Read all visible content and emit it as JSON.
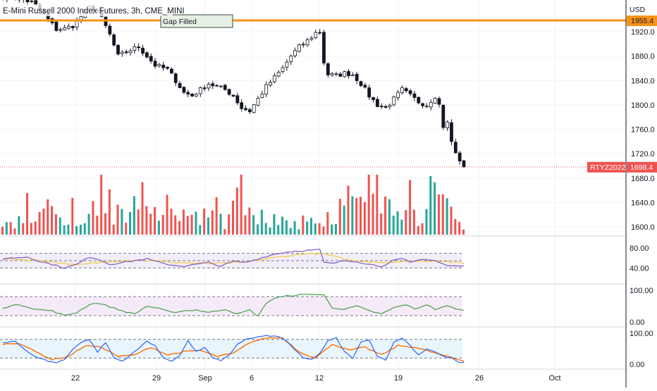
{
  "header": {
    "title": "E-Mini Russell 2000 Index Futures, 3h, CME_MINI"
  },
  "price_axis": {
    "currency": "USD",
    "ticks": [
      1920,
      1880,
      1840,
      1800,
      1760,
      1720,
      1680,
      1640,
      1600
    ],
    "tick_labels": [
      "1920.0",
      "1880.0",
      "1840.0",
      "1800.0",
      "1760.0",
      "1720.0",
      "1680.0",
      "1640.0",
      "1600.0"
    ],
    "hline_label": "1955.4"
  },
  "annotations": {
    "gap_label": "Gap Filled",
    "symbol_tag": "RTYZ2022",
    "last_price": "1698.4"
  },
  "rsi_panel": {
    "ticks": [
      "80.00",
      "40.00"
    ]
  },
  "osc_panel": {
    "ticks": [
      "100.00",
      "0.00"
    ]
  },
  "stoch_panel": {
    "ticks": [
      "100.00",
      "0.00"
    ]
  },
  "time_axis": {
    "labels": [
      "22",
      "29",
      "Sep",
      "6",
      "12",
      "19",
      "26",
      "Oct"
    ]
  },
  "colors": {
    "up": "#26a69a",
    "down": "#ef5350",
    "candle": "#131722",
    "hline": "#f7931a",
    "rsi": "#7e57c2",
    "rsi_ma": "#f3ca45",
    "osc": "#43a047",
    "stoch_k": "#2962ff",
    "stoch_d": "#ff6d00"
  },
  "chart_data": {
    "type": "candlestick",
    "interval": "3h",
    "x_labels": [
      "22",
      "29",
      "Sep",
      "6",
      "12",
      "19",
      "26",
      "Oct"
    ],
    "ylim": [
      1585,
      1972
    ],
    "horizontal_line": 1955.4,
    "last_price": 1698.4,
    "price_path": [
      [
        0,
        1978
      ],
      [
        4,
        1975
      ],
      [
        7,
        1968
      ],
      [
        9,
        1955
      ],
      [
        11,
        1940
      ],
      [
        13,
        1924
      ],
      [
        15,
        1925
      ],
      [
        17,
        1930
      ],
      [
        19,
        1945
      ],
      [
        21,
        1960
      ],
      [
        23,
        1955
      ],
      [
        26,
        1915
      ],
      [
        28,
        1880
      ],
      [
        31,
        1890
      ],
      [
        33,
        1895
      ],
      [
        35,
        1880
      ],
      [
        37,
        1865
      ],
      [
        40,
        1858
      ],
      [
        42,
        1840
      ],
      [
        44,
        1820
      ],
      [
        46,
        1815
      ],
      [
        48,
        1825
      ],
      [
        50,
        1835
      ],
      [
        52,
        1830
      ],
      [
        54,
        1825
      ],
      [
        56,
        1815
      ],
      [
        58,
        1795
      ],
      [
        60,
        1790
      ],
      [
        62,
        1810
      ],
      [
        64,
        1830
      ],
      [
        66,
        1845
      ],
      [
        68,
        1860
      ],
      [
        70,
        1880
      ],
      [
        72,
        1895
      ],
      [
        74,
        1905
      ],
      [
        76,
        1918
      ],
      [
        77,
        1920
      ],
      [
        78,
        1870
      ],
      [
        79,
        1850
      ],
      [
        81,
        1848
      ],
      [
        83,
        1852
      ],
      [
        85,
        1850
      ],
      [
        87,
        1835
      ],
      [
        89,
        1815
      ],
      [
        91,
        1800
      ],
      [
        93,
        1795
      ],
      [
        95,
        1810
      ],
      [
        97,
        1825
      ],
      [
        99,
        1815
      ],
      [
        101,
        1805
      ],
      [
        103,
        1800
      ],
      [
        105,
        1815
      ],
      [
        106,
        1800
      ],
      [
        107,
        1765
      ],
      [
        108,
        1770
      ],
      [
        109,
        1740
      ],
      [
        110,
        1720
      ],
      [
        111,
        1710
      ],
      [
        112,
        1698
      ]
    ],
    "volume_path": [
      [
        0,
        8
      ],
      [
        3,
        14
      ],
      [
        5,
        30
      ],
      [
        8,
        22
      ],
      [
        12,
        40
      ],
      [
        15,
        18
      ],
      [
        19,
        32
      ],
      [
        22,
        55
      ],
      [
        24,
        60
      ],
      [
        27,
        35
      ],
      [
        30,
        20
      ],
      [
        33,
        45
      ],
      [
        36,
        25
      ],
      [
        40,
        40
      ],
      [
        43,
        15
      ],
      [
        47,
        30
      ],
      [
        50,
        28
      ],
      [
        54,
        18
      ],
      [
        58,
        70
      ],
      [
        61,
        35
      ],
      [
        64,
        25
      ],
      [
        67,
        20
      ],
      [
        71,
        15
      ],
      [
        75,
        25
      ],
      [
        78,
        20
      ],
      [
        81,
        30
      ],
      [
        84,
        55
      ],
      [
        87,
        40
      ],
      [
        90,
        60
      ],
      [
        93,
        40
      ],
      [
        96,
        25
      ],
      [
        99,
        35
      ],
      [
        102,
        25
      ],
      [
        105,
        50
      ],
      [
        108,
        45
      ],
      [
        112,
        12
      ]
    ],
    "rsi_path": [
      [
        0,
        55
      ],
      [
        3,
        58
      ],
      [
        6,
        60
      ],
      [
        9,
        48
      ],
      [
        12,
        40
      ],
      [
        15,
        30
      ],
      [
        18,
        40
      ],
      [
        21,
        60
      ],
      [
        23,
        55
      ],
      [
        26,
        40
      ],
      [
        29,
        45
      ],
      [
        32,
        50
      ],
      [
        35,
        55
      ],
      [
        38,
        45
      ],
      [
        41,
        38
      ],
      [
        44,
        35
      ],
      [
        47,
        40
      ],
      [
        50,
        45
      ],
      [
        53,
        35
      ],
      [
        56,
        48
      ],
      [
        59,
        45
      ],
      [
        62,
        55
      ],
      [
        65,
        65
      ],
      [
        68,
        72
      ],
      [
        71,
        76
      ],
      [
        74,
        78
      ],
      [
        77,
        80
      ],
      [
        78,
        45
      ],
      [
        80,
        42
      ],
      [
        83,
        50
      ],
      [
        86,
        48
      ],
      [
        89,
        40
      ],
      [
        92,
        35
      ],
      [
        95,
        50
      ],
      [
        97,
        55
      ],
      [
        99,
        45
      ],
      [
        102,
        55
      ],
      [
        105,
        50
      ],
      [
        108,
        36
      ],
      [
        112,
        35
      ]
    ],
    "rsi_ma_path": [
      [
        0,
        56
      ],
      [
        10,
        50
      ],
      [
        18,
        38
      ],
      [
        26,
        48
      ],
      [
        34,
        52
      ],
      [
        42,
        45
      ],
      [
        50,
        42
      ],
      [
        58,
        45
      ],
      [
        66,
        58
      ],
      [
        74,
        70
      ],
      [
        78,
        68
      ],
      [
        84,
        52
      ],
      [
        92,
        45
      ],
      [
        100,
        48
      ],
      [
        106,
        50
      ],
      [
        112,
        42
      ]
    ],
    "osc_path": [
      [
        0,
        45
      ],
      [
        4,
        55
      ],
      [
        8,
        40
      ],
      [
        12,
        35
      ],
      [
        15,
        20
      ],
      [
        18,
        30
      ],
      [
        21,
        55
      ],
      [
        23,
        60
      ],
      [
        26,
        48
      ],
      [
        29,
        35
      ],
      [
        32,
        25
      ],
      [
        35,
        50
      ],
      [
        38,
        42
      ],
      [
        41,
        30
      ],
      [
        44,
        35
      ],
      [
        47,
        38
      ],
      [
        50,
        30
      ],
      [
        54,
        40
      ],
      [
        57,
        25
      ],
      [
        60,
        38
      ],
      [
        62,
        18
      ],
      [
        64,
        60
      ],
      [
        66,
        75
      ],
      [
        69,
        82
      ],
      [
        72,
        85
      ],
      [
        75,
        88
      ],
      [
        78,
        85
      ],
      [
        80,
        45
      ],
      [
        83,
        40
      ],
      [
        86,
        50
      ],
      [
        89,
        35
      ],
      [
        92,
        25
      ],
      [
        95,
        45
      ],
      [
        98,
        55
      ],
      [
        100,
        40
      ],
      [
        103,
        55
      ],
      [
        105,
        40
      ],
      [
        108,
        50
      ],
      [
        112,
        35
      ]
    ],
    "stoch_k_path": [
      [
        0,
        70
      ],
      [
        3,
        75
      ],
      [
        5,
        50
      ],
      [
        7,
        30
      ],
      [
        9,
        20
      ],
      [
        11,
        10
      ],
      [
        13,
        5
      ],
      [
        15,
        15
      ],
      [
        17,
        50
      ],
      [
        19,
        70
      ],
      [
        21,
        80
      ],
      [
        23,
        40
      ],
      [
        25,
        70
      ],
      [
        27,
        20
      ],
      [
        29,
        10
      ],
      [
        31,
        30
      ],
      [
        33,
        50
      ],
      [
        35,
        75
      ],
      [
        37,
        60
      ],
      [
        39,
        20
      ],
      [
        41,
        10
      ],
      [
        43,
        30
      ],
      [
        45,
        75
      ],
      [
        47,
        40
      ],
      [
        49,
        55
      ],
      [
        51,
        20
      ],
      [
        53,
        10
      ],
      [
        55,
        30
      ],
      [
        57,
        65
      ],
      [
        59,
        80
      ],
      [
        61,
        85
      ],
      [
        63,
        90
      ],
      [
        65,
        92
      ],
      [
        67,
        88
      ],
      [
        69,
        75
      ],
      [
        71,
        45
      ],
      [
        73,
        20
      ],
      [
        75,
        15
      ],
      [
        77,
        35
      ],
      [
        79,
        75
      ],
      [
        81,
        85
      ],
      [
        83,
        40
      ],
      [
        85,
        20
      ],
      [
        87,
        70
      ],
      [
        89,
        80
      ],
      [
        91,
        25
      ],
      [
        93,
        15
      ],
      [
        95,
        70
      ],
      [
        97,
        85
      ],
      [
        99,
        60
      ],
      [
        101,
        30
      ],
      [
        103,
        50
      ],
      [
        105,
        40
      ],
      [
        107,
        25
      ],
      [
        109,
        20
      ],
      [
        111,
        5
      ],
      [
        112,
        5
      ]
    ],
    "stoch_d_path": [
      [
        0,
        65
      ],
      [
        4,
        68
      ],
      [
        8,
        40
      ],
      [
        12,
        15
      ],
      [
        16,
        25
      ],
      [
        20,
        60
      ],
      [
        24,
        55
      ],
      [
        28,
        25
      ],
      [
        32,
        30
      ],
      [
        36,
        55
      ],
      [
        40,
        30
      ],
      [
        44,
        40
      ],
      [
        48,
        45
      ],
      [
        52,
        25
      ],
      [
        56,
        35
      ],
      [
        60,
        70
      ],
      [
        64,
        85
      ],
      [
        68,
        85
      ],
      [
        72,
        40
      ],
      [
        76,
        20
      ],
      [
        80,
        65
      ],
      [
        84,
        45
      ],
      [
        88,
        55
      ],
      [
        92,
        30
      ],
      [
        96,
        60
      ],
      [
        100,
        55
      ],
      [
        104,
        40
      ],
      [
        108,
        25
      ],
      [
        112,
        10
      ]
    ]
  }
}
